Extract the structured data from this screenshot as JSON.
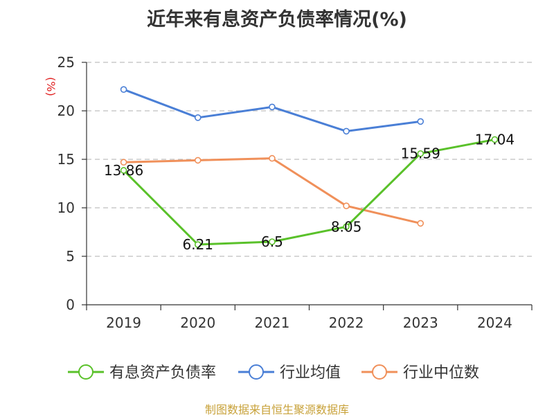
{
  "title": "近年来有息资产负债率情况(%)",
  "source": "制图数据来自恒生聚源数据库",
  "colors": {
    "series_1": "#5ac12a",
    "series_2": "#4a7fd6",
    "series_3": "#f0905a",
    "grid": "#bfbfbf",
    "axis": "#333333",
    "ylabel": "#e02020"
  },
  "chart_data": {
    "type": "line",
    "title": "近年来有息资产负债率情况(%)",
    "xlabel": "",
    "ylabel": "(%)",
    "categories": [
      "2019",
      "2020",
      "2021",
      "2022",
      "2023",
      "2024"
    ],
    "ylim": [
      0,
      25
    ],
    "yticks": [
      0,
      5,
      10,
      15,
      20,
      25
    ],
    "grid": true,
    "legend": "bottom",
    "series": [
      {
        "name": "有息资产负债率",
        "values": [
          13.86,
          6.21,
          6.5,
          8.05,
          15.59,
          17.04
        ],
        "labels": [
          "13.86",
          "6.21",
          "6.5",
          "8.05",
          "15.59",
          "17.04"
        ],
        "show_labels": true
      },
      {
        "name": "行业均值",
        "values": [
          22.2,
          19.3,
          20.4,
          17.9,
          18.9,
          null
        ],
        "show_labels": false
      },
      {
        "name": "行业中位数",
        "values": [
          14.7,
          14.9,
          15.1,
          10.2,
          8.4,
          null
        ],
        "show_labels": false
      }
    ]
  }
}
